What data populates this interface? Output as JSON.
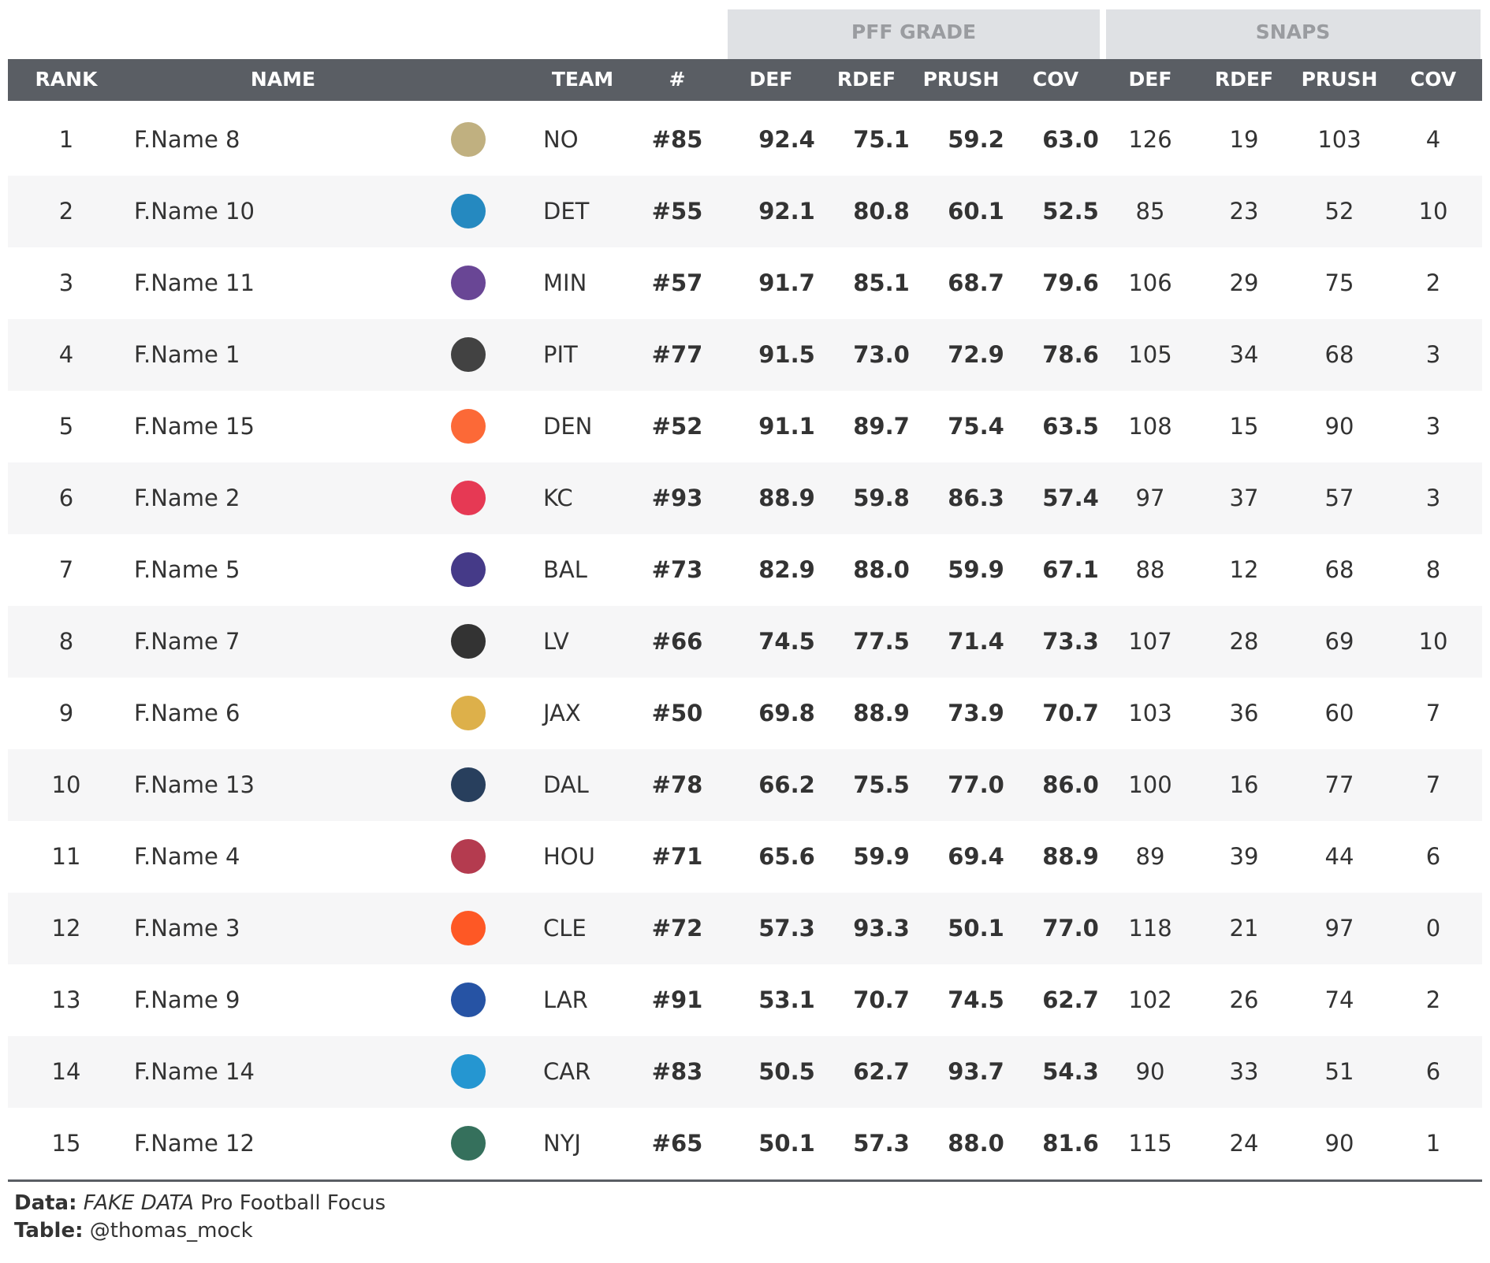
{
  "table": {
    "spanners": [
      "PFF GRADE",
      "SNAPS"
    ],
    "columns": [
      "RANK",
      "NAME",
      "TEAM",
      "#",
      "DEF",
      "RDEF",
      "PRUSH",
      "COV",
      "DEF",
      "RDEF",
      "PRUSH",
      "COV"
    ],
    "rows": [
      [
        1,
        "F.Name 8",
        "NO",
        "#85",
        "92.4",
        "75.1",
        "59.2",
        "63.0",
        126,
        19,
        103,
        4
      ],
      [
        2,
        "F.Name 10",
        "DET",
        "#55",
        "92.1",
        "80.8",
        "60.1",
        "52.5",
        85,
        23,
        52,
        10
      ],
      [
        3,
        "F.Name 11",
        "MIN",
        "#57",
        "91.7",
        "85.1",
        "68.7",
        "79.6",
        106,
        29,
        75,
        2
      ],
      [
        4,
        "F.Name 1",
        "PIT",
        "#77",
        "91.5",
        "73.0",
        "72.9",
        "78.6",
        105,
        34,
        68,
        3
      ],
      [
        5,
        "F.Name 15",
        "DEN",
        "#52",
        "91.1",
        "89.7",
        "75.4",
        "63.5",
        108,
        15,
        90,
        3
      ],
      [
        6,
        "F.Name 2",
        "KC",
        "#93",
        "88.9",
        "59.8",
        "86.3",
        "57.4",
        97,
        37,
        57,
        3
      ],
      [
        7,
        "F.Name 5",
        "BAL",
        "#73",
        "82.9",
        "88.0",
        "59.9",
        "67.1",
        88,
        12,
        68,
        8
      ],
      [
        8,
        "F.Name 7",
        "LV",
        "#66",
        "74.5",
        "77.5",
        "71.4",
        "73.3",
        107,
        28,
        69,
        10
      ],
      [
        9,
        "F.Name 6",
        "JAX",
        "#50",
        "69.8",
        "88.9",
        "73.9",
        "70.7",
        103,
        36,
        60,
        7
      ],
      [
        10,
        "F.Name 13",
        "DAL",
        "#78",
        "66.2",
        "75.5",
        "77.0",
        "86.0",
        100,
        16,
        77,
        7
      ],
      [
        11,
        "F.Name 4",
        "HOU",
        "#71",
        "65.6",
        "59.9",
        "69.4",
        "88.9",
        89,
        39,
        44,
        6
      ],
      [
        12,
        "F.Name 3",
        "CLE",
        "#72",
        "57.3",
        "93.3",
        "50.1",
        "77.0",
        118,
        21,
        97,
        0
      ],
      [
        13,
        "F.Name 9",
        "LAR",
        "#91",
        "53.1",
        "70.7",
        "74.5",
        "62.7",
        102,
        26,
        74,
        2
      ],
      [
        14,
        "F.Name 14",
        "CAR",
        "#83",
        "50.5",
        "62.7",
        "93.7",
        "54.3",
        90,
        33,
        51,
        6
      ],
      [
        15,
        "F.Name 12",
        "NYJ",
        "#65",
        "50.1",
        "57.3",
        "88.0",
        "81.6",
        115,
        24,
        90,
        1
      ]
    ]
  },
  "footer": {
    "data_label": "Data:",
    "data_emphasis": "FAKE DATA",
    "data_text": "Pro Football Focus",
    "table_label": "Table:",
    "table_text": "@thomas_mock"
  }
}
